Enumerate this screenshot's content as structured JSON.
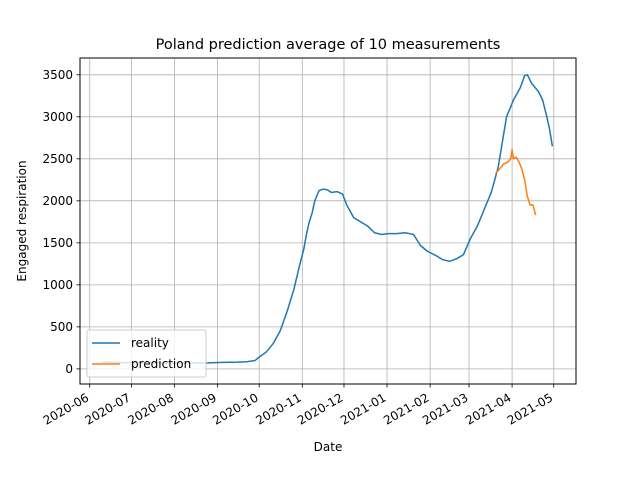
{
  "chart_data": {
    "type": "line",
    "title": "Poland prediction average of 10 measurements",
    "xlabel": "Date",
    "ylabel": "Engaged respiration",
    "x_range": [
      "2020-05-25",
      "2021-05-17"
    ],
    "ylim": [
      -180,
      3700
    ],
    "grid": true,
    "legend_position": "lower-left",
    "x_ticks": [
      "2020-06",
      "2020-07",
      "2020-08",
      "2020-09",
      "2020-10",
      "2020-11",
      "2020-12",
      "2021-01",
      "2021-02",
      "2021-03",
      "2021-04",
      "2021-05"
    ],
    "y_ticks": [
      0,
      500,
      1000,
      1500,
      2000,
      2500,
      3000,
      3500
    ],
    "colors": {
      "reality": "#1f77b4",
      "prediction": "#ff7f0e"
    },
    "series": [
      {
        "name": "reality",
        "points": [
          [
            "2020-06-10",
            80
          ],
          [
            "2020-06-25",
            75
          ],
          [
            "2020-07-10",
            75
          ],
          [
            "2020-07-25",
            70
          ],
          [
            "2020-08-10",
            70
          ],
          [
            "2020-08-25",
            72
          ],
          [
            "2020-09-05",
            78
          ],
          [
            "2020-09-15",
            80
          ],
          [
            "2020-09-22",
            85
          ],
          [
            "2020-09-28",
            100
          ],
          [
            "2020-10-01",
            140
          ],
          [
            "2020-10-06",
            200
          ],
          [
            "2020-10-11",
            300
          ],
          [
            "2020-10-16",
            450
          ],
          [
            "2020-10-21",
            680
          ],
          [
            "2020-10-26",
            950
          ],
          [
            "2020-10-30",
            1230
          ],
          [
            "2020-11-02",
            1420
          ],
          [
            "2020-11-04",
            1600
          ],
          [
            "2020-11-06",
            1750
          ],
          [
            "2020-11-08",
            1850
          ],
          [
            "2020-11-10",
            2000
          ],
          [
            "2020-11-13",
            2120
          ],
          [
            "2020-11-16",
            2140
          ],
          [
            "2020-11-19",
            2130
          ],
          [
            "2020-11-22",
            2100
          ],
          [
            "2020-11-26",
            2110
          ],
          [
            "2020-11-30",
            2080
          ],
          [
            "2020-12-03",
            1950
          ],
          [
            "2020-12-08",
            1800
          ],
          [
            "2020-12-13",
            1750
          ],
          [
            "2020-12-18",
            1700
          ],
          [
            "2020-12-23",
            1620
          ],
          [
            "2020-12-28",
            1600
          ],
          [
            "2021-01-02",
            1610
          ],
          [
            "2021-01-08",
            1610
          ],
          [
            "2021-01-14",
            1620
          ],
          [
            "2021-01-20",
            1600
          ],
          [
            "2021-01-25",
            1470
          ],
          [
            "2021-01-30",
            1400
          ],
          [
            "2021-02-05",
            1350
          ],
          [
            "2021-02-10",
            1300
          ],
          [
            "2021-02-15",
            1280
          ],
          [
            "2021-02-20",
            1310
          ],
          [
            "2021-02-25",
            1360
          ],
          [
            "2021-03-02",
            1550
          ],
          [
            "2021-03-07",
            1700
          ],
          [
            "2021-03-12",
            1900
          ],
          [
            "2021-03-17",
            2100
          ],
          [
            "2021-03-22",
            2400
          ],
          [
            "2021-03-25",
            2700
          ],
          [
            "2021-03-28",
            3000
          ],
          [
            "2021-04-02",
            3200
          ],
          [
            "2021-04-07",
            3350
          ],
          [
            "2021-04-10",
            3490
          ],
          [
            "2021-04-12",
            3500
          ],
          [
            "2021-04-15",
            3400
          ],
          [
            "2021-04-20",
            3300
          ],
          [
            "2021-04-23",
            3200
          ],
          [
            "2021-04-26",
            3000
          ],
          [
            "2021-04-28",
            2850
          ],
          [
            "2021-04-30",
            2650
          ]
        ]
      },
      {
        "name": "prediction",
        "points": [
          [
            "2021-03-20",
            2320
          ],
          [
            "2021-03-23",
            2380
          ],
          [
            "2021-03-26",
            2440
          ],
          [
            "2021-03-29",
            2460
          ],
          [
            "2021-03-31",
            2500
          ],
          [
            "2021-04-01",
            2610
          ],
          [
            "2021-04-02",
            2500
          ],
          [
            "2021-04-04",
            2520
          ],
          [
            "2021-04-06",
            2460
          ],
          [
            "2021-04-08",
            2380
          ],
          [
            "2021-04-10",
            2250
          ],
          [
            "2021-04-12",
            2050
          ],
          [
            "2021-04-14",
            1950
          ],
          [
            "2021-04-16",
            1950
          ],
          [
            "2021-04-18",
            1830
          ]
        ]
      }
    ]
  }
}
